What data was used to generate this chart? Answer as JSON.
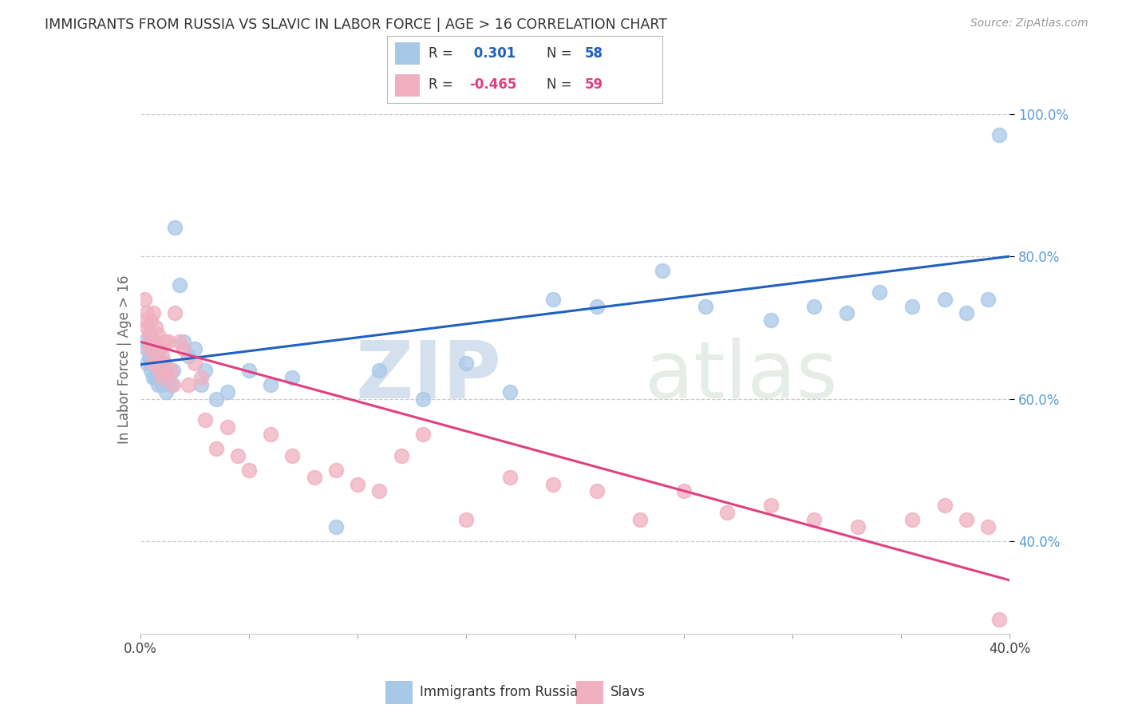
{
  "title": "IMMIGRANTS FROM RUSSIA VS SLAVIC IN LABOR FORCE | AGE > 16 CORRELATION CHART",
  "source": "Source: ZipAtlas.com",
  "ylabel": "In Labor Force | Age > 16",
  "xlim": [
    0.0,
    0.4
  ],
  "ylim": [
    0.27,
    1.04
  ],
  "xticks": [
    0.0,
    0.05,
    0.1,
    0.15,
    0.2,
    0.25,
    0.3,
    0.35,
    0.4
  ],
  "xticklabels": [
    "0.0%",
    "",
    "",
    "",
    "",
    "",
    "",
    "",
    "40.0%"
  ],
  "yticks": [
    0.4,
    0.6,
    0.8,
    1.0
  ],
  "yticklabels": [
    "40.0%",
    "60.0%",
    "80.0%",
    "100.0%"
  ],
  "blue_R": 0.301,
  "blue_N": 58,
  "pink_R": -0.465,
  "pink_N": 59,
  "blue_color": "#A8C8E8",
  "pink_color": "#F0B0C0",
  "blue_line_color": "#2060C0",
  "pink_line_color": "#E04080",
  "legend_blue_label": "Immigrants from Russia",
  "legend_pink_label": "Slavs",
  "watermark_zip": "ZIP",
  "watermark_atlas": "atlas",
  "blue_x": [
    0.002,
    0.003,
    0.003,
    0.004,
    0.004,
    0.005,
    0.005,
    0.005,
    0.006,
    0.006,
    0.006,
    0.007,
    0.007,
    0.007,
    0.008,
    0.008,
    0.008,
    0.009,
    0.009,
    0.01,
    0.01,
    0.011,
    0.011,
    0.012,
    0.012,
    0.013,
    0.014,
    0.015,
    0.016,
    0.018,
    0.02,
    0.022,
    0.025,
    0.028,
    0.03,
    0.035,
    0.04,
    0.05,
    0.06,
    0.07,
    0.09,
    0.11,
    0.13,
    0.15,
    0.17,
    0.19,
    0.21,
    0.24,
    0.26,
    0.29,
    0.31,
    0.325,
    0.34,
    0.355,
    0.37,
    0.38,
    0.39,
    0.395
  ],
  "blue_y": [
    0.68,
    0.67,
    0.65,
    0.69,
    0.66,
    0.67,
    0.65,
    0.64,
    0.68,
    0.66,
    0.63,
    0.67,
    0.65,
    0.63,
    0.66,
    0.64,
    0.62,
    0.65,
    0.63,
    0.64,
    0.62,
    0.65,
    0.63,
    0.64,
    0.61,
    0.63,
    0.62,
    0.64,
    0.84,
    0.76,
    0.68,
    0.66,
    0.67,
    0.62,
    0.64,
    0.6,
    0.61,
    0.64,
    0.62,
    0.63,
    0.42,
    0.64,
    0.6,
    0.65,
    0.61,
    0.74,
    0.73,
    0.78,
    0.73,
    0.71,
    0.73,
    0.72,
    0.75,
    0.73,
    0.74,
    0.72,
    0.74,
    0.97
  ],
  "pink_x": [
    0.002,
    0.002,
    0.003,
    0.003,
    0.004,
    0.004,
    0.005,
    0.005,
    0.006,
    0.006,
    0.006,
    0.007,
    0.007,
    0.008,
    0.008,
    0.009,
    0.009,
    0.01,
    0.01,
    0.011,
    0.011,
    0.012,
    0.013,
    0.014,
    0.015,
    0.016,
    0.018,
    0.02,
    0.022,
    0.025,
    0.028,
    0.03,
    0.035,
    0.04,
    0.045,
    0.05,
    0.06,
    0.07,
    0.08,
    0.09,
    0.1,
    0.11,
    0.12,
    0.13,
    0.15,
    0.17,
    0.19,
    0.21,
    0.23,
    0.25,
    0.27,
    0.29,
    0.31,
    0.33,
    0.355,
    0.37,
    0.38,
    0.39,
    0.395
  ],
  "pink_y": [
    0.74,
    0.71,
    0.72,
    0.7,
    0.69,
    0.67,
    0.71,
    0.68,
    0.72,
    0.68,
    0.65,
    0.7,
    0.67,
    0.69,
    0.65,
    0.67,
    0.64,
    0.66,
    0.63,
    0.68,
    0.65,
    0.64,
    0.68,
    0.64,
    0.62,
    0.72,
    0.68,
    0.67,
    0.62,
    0.65,
    0.63,
    0.57,
    0.53,
    0.56,
    0.52,
    0.5,
    0.55,
    0.52,
    0.49,
    0.5,
    0.48,
    0.47,
    0.52,
    0.55,
    0.43,
    0.49,
    0.48,
    0.47,
    0.43,
    0.47,
    0.44,
    0.45,
    0.43,
    0.42,
    0.43,
    0.45,
    0.43,
    0.42,
    0.29
  ],
  "background_color": "#FFFFFF",
  "grid_color": "#CCCCCC",
  "title_color": "#333333",
  "axis_label_color": "#666666",
  "tick_color_right": "#5B9BD5",
  "tick_color_bottom": "#444444",
  "legend_box_color": "#DDDDDD"
}
